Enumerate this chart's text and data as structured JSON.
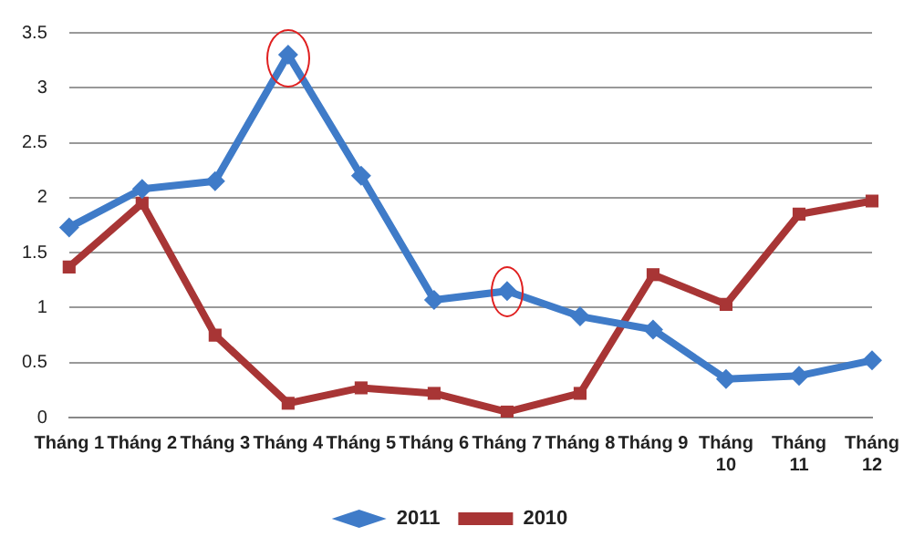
{
  "chart_data": {
    "type": "line",
    "categories": [
      "Tháng 1",
      "Tháng 2",
      "Tháng 3",
      "Tháng 4",
      "Tháng 5",
      "Tháng 6",
      "Tháng 7",
      "Tháng 8",
      "Tháng 9",
      "Tháng 10",
      "Tháng 11",
      "Tháng 12"
    ],
    "series": [
      {
        "name": "2011",
        "color": "#3f7bc8",
        "marker": "diamond",
        "values": [
          1.73,
          2.08,
          2.15,
          3.3,
          2.2,
          1.07,
          1.15,
          0.92,
          0.8,
          0.35,
          0.38,
          0.52
        ]
      },
      {
        "name": "2010",
        "color": "#a83535",
        "marker": "square",
        "values": [
          1.37,
          1.95,
          0.75,
          0.13,
          0.27,
          0.22,
          0.05,
          0.22,
          1.3,
          1.03,
          1.85,
          1.97
        ]
      }
    ],
    "ylim": [
      0,
      3.5
    ],
    "yticks": [
      0,
      0.5,
      1,
      1.5,
      2,
      2.5,
      3,
      3.5
    ],
    "grid": "y",
    "legend": "bottom",
    "line_style": "solid"
  }
}
